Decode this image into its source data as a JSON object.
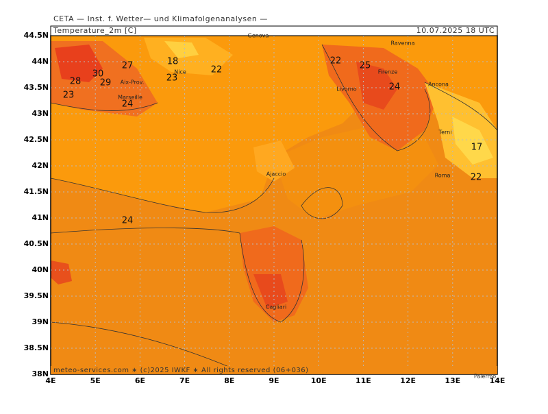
{
  "header": {
    "source": "CETA — Inst. f. Wetter— und Klimafolgenanalysen —",
    "title": "Temperature_2m [C]",
    "valid_time": "10.07.2025 18 UTC",
    "footer": "meteo-services.com ∗ (c)2025 IWKF ∗ All rights reserved (06+036)"
  },
  "lat_labels": [
    "44.5N",
    "44N",
    "43.5N",
    "43N",
    "42.5N",
    "42N",
    "41.5N",
    "41N",
    "40.5N",
    "40N",
    "39.5N",
    "39N",
    "38.5N",
    "38N"
  ],
  "lon_labels": [
    "4E",
    "5E",
    "6E",
    "7E",
    "8E",
    "9E",
    "10E",
    "11E",
    "12E",
    "13E",
    "14E"
  ],
  "cities": [
    "Genova",
    "Ravenna",
    "Nice",
    "Aix-Prov.",
    "Marseille",
    "Firenze",
    "Livorno",
    "Ancona",
    "Terni",
    "Ajaccio",
    "Roma",
    "Cagliari",
    "Palermo"
  ],
  "contour_labels": [
    18,
    27,
    22,
    30,
    23,
    28,
    29,
    24,
    23,
    22,
    25,
    24,
    17,
    22,
    24
  ]
}
